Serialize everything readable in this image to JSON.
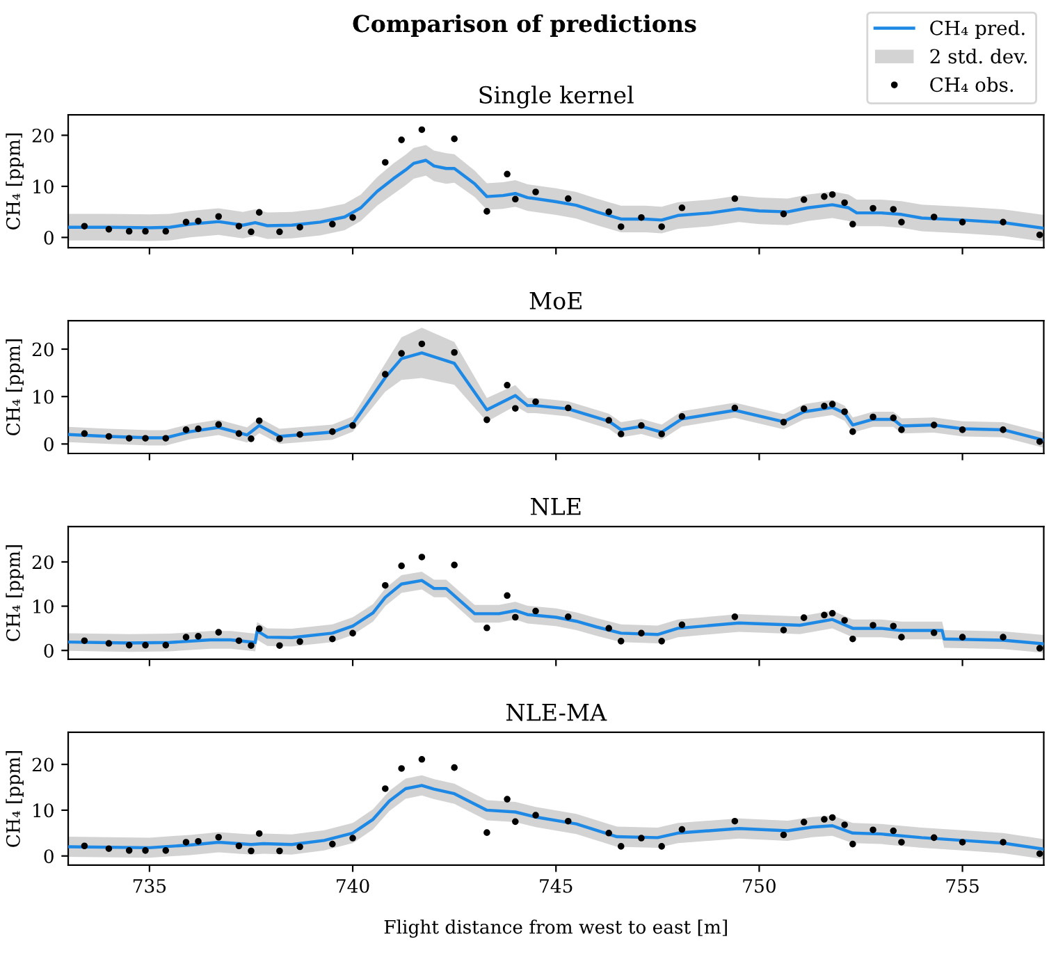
{
  "chart_data": [
    {
      "type": "line",
      "title": "Comparison of predictions",
      "subtitle": "Single kernel",
      "ylabel": "CH₄ [ppm]",
      "xlim": [
        733,
        757
      ],
      "xticks": [
        735,
        740,
        745,
        750,
        755
      ],
      "ylim": [
        -2,
        24
      ],
      "yticks": [
        0,
        10,
        20
      ],
      "tick_labels": "y",
      "legend": "top right",
      "grid": false,
      "series": [
        {
          "name": "CH₄ pred.",
          "color": "#1e88e5",
          "line_style": "solid",
          "x": [
            733.0,
            734.0,
            735.0,
            735.5,
            736.0,
            736.7,
            737.3,
            737.6,
            737.9,
            738.5,
            739.2,
            739.8,
            740.2,
            740.6,
            741.0,
            741.3,
            741.5,
            741.8,
            742.0,
            742.3,
            742.5,
            743.0,
            743.3,
            743.7,
            744.0,
            744.3,
            745.0,
            745.5,
            746.0,
            746.6,
            747.2,
            747.6,
            748.0,
            748.8,
            749.5,
            750.0,
            750.7,
            751.2,
            751.8,
            752.2,
            752.4,
            753.0,
            753.5,
            754.0,
            755.0,
            756.0,
            757.0
          ],
          "values": [
            2.0,
            2.0,
            1.9,
            2.0,
            2.6,
            3.1,
            2.4,
            2.9,
            2.3,
            2.4,
            3.0,
            4.0,
            5.8,
            9.0,
            11.5,
            13.2,
            14.5,
            15.1,
            14.0,
            13.5,
            13.5,
            10.5,
            8.0,
            8.2,
            8.6,
            7.8,
            7.0,
            6.3,
            5.0,
            3.6,
            3.6,
            3.4,
            4.3,
            4.8,
            5.6,
            5.2,
            5.0,
            5.8,
            6.4,
            5.8,
            4.8,
            4.8,
            4.5,
            3.8,
            3.4,
            2.9,
            1.8
          ],
          "lower": [
            -0.6,
            -0.6,
            -0.7,
            -0.6,
            0.0,
            0.5,
            -0.2,
            0.3,
            -0.3,
            -0.2,
            0.4,
            1.4,
            3.2,
            6.2,
            8.5,
            10.2,
            11.5,
            12.1,
            11.0,
            10.5,
            10.7,
            7.9,
            5.4,
            5.6,
            6.0,
            5.2,
            4.4,
            3.7,
            2.4,
            1.0,
            1.0,
            0.8,
            1.7,
            2.2,
            3.0,
            2.6,
            2.4,
            3.2,
            3.8,
            3.2,
            2.2,
            2.2,
            1.9,
            1.2,
            0.8,
            0.3,
            -0.8
          ],
          "upper": [
            4.6,
            4.6,
            4.5,
            4.6,
            5.2,
            5.7,
            5.0,
            5.5,
            4.9,
            5.0,
            5.6,
            6.6,
            8.4,
            11.8,
            14.5,
            16.2,
            17.5,
            18.1,
            17.0,
            16.5,
            16.3,
            13.1,
            10.6,
            10.8,
            11.2,
            10.4,
            9.6,
            8.9,
            7.6,
            6.2,
            6.2,
            6.0,
            6.9,
            7.4,
            8.2,
            7.8,
            7.6,
            8.4,
            9.0,
            8.4,
            7.4,
            7.4,
            7.1,
            6.4,
            6.0,
            5.5,
            4.4
          ]
        },
        {
          "name": "2 std. dev.",
          "type": "area",
          "color": "#d3d3d3"
        },
        {
          "name": "CH₄ obs.",
          "type": "scatter",
          "color": "#000000",
          "marker": "circle",
          "x": [
            733.4,
            734.0,
            734.5,
            734.9,
            735.4,
            735.9,
            736.2,
            736.7,
            737.2,
            737.5,
            737.7,
            738.2,
            738.7,
            739.5,
            740.0,
            740.8,
            741.2,
            741.7,
            742.5,
            743.3,
            743.8,
            744.0,
            744.5,
            745.3,
            746.3,
            746.6,
            747.1,
            747.6,
            748.1,
            749.4,
            750.6,
            751.1,
            751.6,
            751.8,
            752.1,
            752.3,
            752.8,
            753.3,
            753.5,
            754.3,
            755.0,
            756.0,
            756.9
          ],
          "values": [
            2.2,
            1.6,
            1.2,
            1.2,
            1.2,
            3.0,
            3.2,
            4.1,
            2.2,
            1.1,
            4.9,
            1.1,
            2.0,
            2.6,
            3.9,
            14.7,
            19.1,
            21.1,
            19.3,
            5.1,
            12.4,
            7.5,
            8.9,
            7.6,
            5.0,
            2.1,
            3.9,
            2.1,
            5.8,
            7.6,
            4.6,
            7.4,
            8.0,
            8.4,
            6.8,
            2.6,
            5.7,
            5.5,
            3.0,
            4.0,
            3.0,
            3.0,
            0.5
          ]
        }
      ]
    },
    {
      "type": "line",
      "title": "MoE",
      "ylabel": "CH₄ [ppm]",
      "xlim": [
        733,
        757
      ],
      "xticks": [
        735,
        740,
        745,
        750,
        755
      ],
      "ylim": [
        -2,
        26
      ],
      "yticks": [
        0,
        10,
        20
      ],
      "tick_labels": "y",
      "grid": false,
      "series": [
        {
          "color": "#1e88e5",
          "line_style": "solid",
          "x": [
            733.0,
            734.0,
            735.0,
            735.4,
            736.0,
            736.7,
            737.4,
            737.7,
            738.2,
            739.5,
            740.0,
            740.8,
            741.2,
            741.7,
            742.5,
            743.3,
            744.0,
            744.3,
            744.5,
            745.3,
            746.3,
            746.6,
            747.1,
            747.6,
            748.1,
            749.4,
            750.6,
            751.1,
            751.8,
            752.1,
            752.3,
            752.8,
            753.3,
            753.5,
            754.3,
            755.0,
            756.0,
            757.0
          ],
          "values": [
            2.0,
            1.6,
            1.3,
            1.3,
            2.6,
            3.5,
            1.9,
            3.9,
            1.6,
            2.5,
            4.2,
            14.0,
            18.0,
            19.2,
            17.0,
            7.2,
            10.2,
            8.1,
            8.1,
            7.4,
            4.8,
            3.0,
            3.7,
            2.5,
            5.3,
            7.1,
            4.7,
            6.8,
            7.7,
            6.5,
            4.0,
            5.2,
            5.2,
            3.8,
            4.0,
            3.2,
            3.0,
            0.8
          ],
          "lower": [
            0.4,
            0.0,
            -0.3,
            -0.3,
            1.0,
            1.9,
            0.3,
            2.3,
            0.0,
            0.9,
            2.6,
            11.0,
            13.5,
            13.9,
            12.5,
            4.7,
            8.0,
            6.5,
            6.5,
            5.8,
            3.2,
            1.4,
            2.1,
            0.9,
            3.7,
            5.5,
            3.1,
            5.2,
            6.1,
            4.9,
            2.4,
            3.6,
            3.6,
            2.2,
            2.4,
            1.6,
            1.4,
            -0.8
          ],
          "upper": [
            3.6,
            3.2,
            2.9,
            2.9,
            4.2,
            5.1,
            3.5,
            5.5,
            3.2,
            4.1,
            5.8,
            17.0,
            22.5,
            24.5,
            21.5,
            9.7,
            12.4,
            9.7,
            9.7,
            9.0,
            6.4,
            4.6,
            5.3,
            4.1,
            6.9,
            8.7,
            6.3,
            8.4,
            9.3,
            8.1,
            5.6,
            6.8,
            6.8,
            5.4,
            5.6,
            4.8,
            4.6,
            2.4
          ]
        },
        {
          "type": "area",
          "color": "#d3d3d3"
        },
        {
          "type": "scatter",
          "color": "#000000",
          "marker": "circle",
          "x": [
            733.4,
            734.0,
            734.5,
            734.9,
            735.4,
            735.9,
            736.2,
            736.7,
            737.2,
            737.5,
            737.7,
            738.2,
            738.7,
            739.5,
            740.0,
            740.8,
            741.2,
            741.7,
            742.5,
            743.3,
            743.8,
            744.0,
            744.5,
            745.3,
            746.3,
            746.6,
            747.1,
            747.6,
            748.1,
            749.4,
            750.6,
            751.1,
            751.6,
            751.8,
            752.1,
            752.3,
            752.8,
            753.3,
            753.5,
            754.3,
            755.0,
            756.0,
            756.9
          ],
          "values": [
            2.2,
            1.6,
            1.2,
            1.2,
            1.2,
            3.0,
            3.2,
            4.1,
            2.2,
            1.1,
            4.9,
            1.1,
            2.0,
            2.6,
            3.9,
            14.7,
            19.1,
            21.1,
            19.3,
            5.1,
            12.4,
            7.5,
            8.9,
            7.6,
            5.0,
            2.1,
            3.9,
            2.1,
            5.8,
            7.6,
            4.6,
            7.4,
            8.0,
            8.4,
            6.8,
            2.6,
            5.7,
            5.5,
            3.0,
            4.0,
            3.0,
            3.0,
            0.5
          ]
        }
      ]
    },
    {
      "type": "line",
      "title": "NLE",
      "ylabel": "CH₄ [ppm]",
      "xlim": [
        733,
        757
      ],
      "xticks": [
        735,
        740,
        745,
        750,
        755
      ],
      "ylim": [
        -2,
        28
      ],
      "yticks": [
        0,
        10,
        20
      ],
      "tick_labels": "y",
      "grid": false,
      "series": [
        {
          "color": "#1e88e5",
          "line_style": "solid",
          "x": [
            733.0,
            734.5,
            735.5,
            736.5,
            737.0,
            737.6,
            737.65,
            737.9,
            738.5,
            739.5,
            740.0,
            740.5,
            740.8,
            741.2,
            741.7,
            742.0,
            742.3,
            743.0,
            743.6,
            744.0,
            744.3,
            745.0,
            745.5,
            746.0,
            746.6,
            747.5,
            748.0,
            749.5,
            751.0,
            751.8,
            752.3,
            753.0,
            753.5,
            754.5,
            754.55,
            756.0,
            757.0
          ],
          "values": [
            1.9,
            1.7,
            1.8,
            2.4,
            2.4,
            1.8,
            4.4,
            3.0,
            2.9,
            3.9,
            5.5,
            8.5,
            12.0,
            15.0,
            15.8,
            14.0,
            14.0,
            8.3,
            8.3,
            9.0,
            8.1,
            7.5,
            6.6,
            5.3,
            3.9,
            3.6,
            5.0,
            6.2,
            5.7,
            7.0,
            5.0,
            5.0,
            4.5,
            4.5,
            2.6,
            2.3,
            1.5
          ],
          "lower": [
            -0.1,
            -0.3,
            -0.2,
            0.4,
            0.4,
            -0.2,
            2.4,
            1.0,
            0.9,
            1.9,
            3.5,
            6.5,
            10.0,
            13.0,
            13.8,
            12.0,
            12.0,
            6.3,
            6.3,
            7.0,
            6.1,
            5.5,
            4.6,
            3.3,
            1.9,
            1.6,
            3.0,
            4.2,
            3.7,
            5.0,
            3.0,
            3.0,
            2.5,
            2.5,
            0.6,
            0.3,
            -0.5
          ],
          "upper": [
            3.9,
            3.7,
            3.8,
            4.4,
            4.4,
            3.8,
            6.4,
            5.0,
            4.9,
            5.9,
            7.5,
            10.5,
            14.0,
            17.0,
            17.8,
            16.0,
            16.0,
            10.3,
            10.3,
            11.0,
            10.1,
            9.5,
            8.6,
            7.3,
            5.9,
            5.6,
            7.0,
            8.2,
            7.7,
            9.0,
            7.0,
            7.0,
            6.5,
            6.5,
            4.6,
            4.3,
            3.5
          ]
        },
        {
          "type": "area",
          "color": "#d3d3d3"
        },
        {
          "type": "scatter",
          "color": "#000000",
          "marker": "circle",
          "x": [
            733.4,
            734.0,
            734.5,
            734.9,
            735.4,
            735.9,
            736.2,
            736.7,
            737.2,
            737.5,
            737.7,
            738.2,
            738.7,
            739.5,
            740.0,
            740.8,
            741.2,
            741.7,
            742.5,
            743.3,
            743.8,
            744.0,
            744.5,
            745.3,
            746.3,
            746.6,
            747.1,
            747.6,
            748.1,
            749.4,
            750.6,
            751.1,
            751.6,
            751.8,
            752.1,
            752.3,
            752.8,
            753.3,
            753.5,
            754.3,
            755.0,
            756.0,
            756.9
          ],
          "values": [
            2.2,
            1.6,
            1.2,
            1.2,
            1.2,
            3.0,
            3.2,
            4.1,
            2.2,
            1.1,
            4.9,
            1.1,
            2.0,
            2.6,
            3.9,
            14.7,
            19.1,
            21.1,
            19.3,
            5.1,
            12.4,
            7.5,
            8.9,
            7.6,
            5.0,
            2.1,
            3.9,
            2.1,
            5.8,
            7.6,
            4.6,
            7.4,
            8.0,
            8.4,
            6.8,
            2.6,
            5.7,
            5.5,
            3.0,
            4.0,
            3.0,
            3.0,
            0.5
          ]
        }
      ]
    },
    {
      "type": "line",
      "title": "NLE-MA",
      "xlabel": "Flight distance from west to east [m]",
      "ylabel": "CH₄ [ppm]",
      "xlim": [
        733,
        757
      ],
      "xticks": [
        735,
        740,
        745,
        750,
        755
      ],
      "ylim": [
        -2,
        27
      ],
      "yticks": [
        0,
        10,
        20
      ],
      "grid": false,
      "series": [
        {
          "color": "#1e88e5",
          "line_style": "solid",
          "x": [
            733.0,
            735.0,
            736.0,
            736.7,
            737.5,
            737.8,
            738.5,
            739.3,
            740.0,
            740.5,
            740.9,
            741.3,
            741.7,
            742.0,
            742.5,
            743.3,
            744.0,
            744.5,
            745.5,
            746.5,
            747.5,
            748.0,
            749.5,
            750.7,
            751.3,
            751.8,
            752.3,
            753.0,
            754.0,
            755.0,
            756.0,
            757.0
          ],
          "values": [
            2.0,
            1.8,
            2.4,
            3.0,
            2.5,
            2.7,
            2.5,
            3.4,
            5.0,
            8.0,
            12.0,
            14.7,
            15.4,
            14.6,
            13.6,
            10.0,
            9.6,
            8.5,
            7.0,
            4.2,
            4.0,
            5.0,
            6.0,
            5.5,
            6.3,
            6.6,
            5.0,
            4.8,
            4.0,
            3.4,
            2.8,
            1.5
          ],
          "lower": [
            -0.2,
            -0.4,
            0.2,
            0.8,
            0.3,
            0.5,
            0.3,
            1.2,
            2.8,
            5.8,
            9.8,
            12.5,
            13.2,
            12.4,
            11.4,
            7.8,
            7.4,
            6.3,
            4.8,
            2.0,
            1.8,
            2.8,
            3.8,
            3.3,
            4.1,
            4.4,
            2.8,
            2.6,
            1.8,
            1.2,
            0.6,
            -0.7
          ],
          "upper": [
            4.2,
            4.0,
            4.6,
            5.2,
            4.7,
            4.9,
            4.7,
            5.6,
            7.2,
            10.2,
            14.2,
            16.9,
            17.6,
            16.8,
            15.8,
            12.2,
            11.8,
            10.7,
            9.2,
            6.4,
            6.2,
            7.2,
            8.2,
            7.7,
            8.5,
            8.8,
            7.2,
            7.0,
            6.2,
            5.6,
            5.0,
            3.7
          ]
        },
        {
          "type": "area",
          "color": "#d3d3d3"
        },
        {
          "type": "scatter",
          "color": "#000000",
          "marker": "circle",
          "x": [
            733.4,
            734.0,
            734.5,
            734.9,
            735.4,
            735.9,
            736.2,
            736.7,
            737.2,
            737.5,
            737.7,
            738.2,
            738.7,
            739.5,
            740.0,
            740.8,
            741.2,
            741.7,
            742.5,
            743.3,
            743.8,
            744.0,
            744.5,
            745.3,
            746.3,
            746.6,
            747.1,
            747.6,
            748.1,
            749.4,
            750.6,
            751.1,
            751.6,
            751.8,
            752.1,
            752.3,
            752.8,
            753.3,
            753.5,
            754.3,
            755.0,
            756.0,
            756.9
          ],
          "values": [
            2.2,
            1.6,
            1.2,
            1.2,
            1.2,
            3.0,
            3.2,
            4.1,
            2.2,
            1.1,
            4.9,
            1.1,
            2.0,
            2.6,
            3.9,
            14.7,
            19.1,
            21.1,
            19.3,
            5.1,
            12.4,
            7.5,
            8.9,
            7.6,
            5.0,
            2.1,
            3.9,
            2.1,
            5.8,
            7.6,
            4.6,
            7.4,
            8.0,
            8.4,
            6.8,
            2.6,
            5.7,
            5.5,
            3.0,
            4.0,
            3.0,
            3.0,
            0.5
          ]
        }
      ]
    }
  ]
}
